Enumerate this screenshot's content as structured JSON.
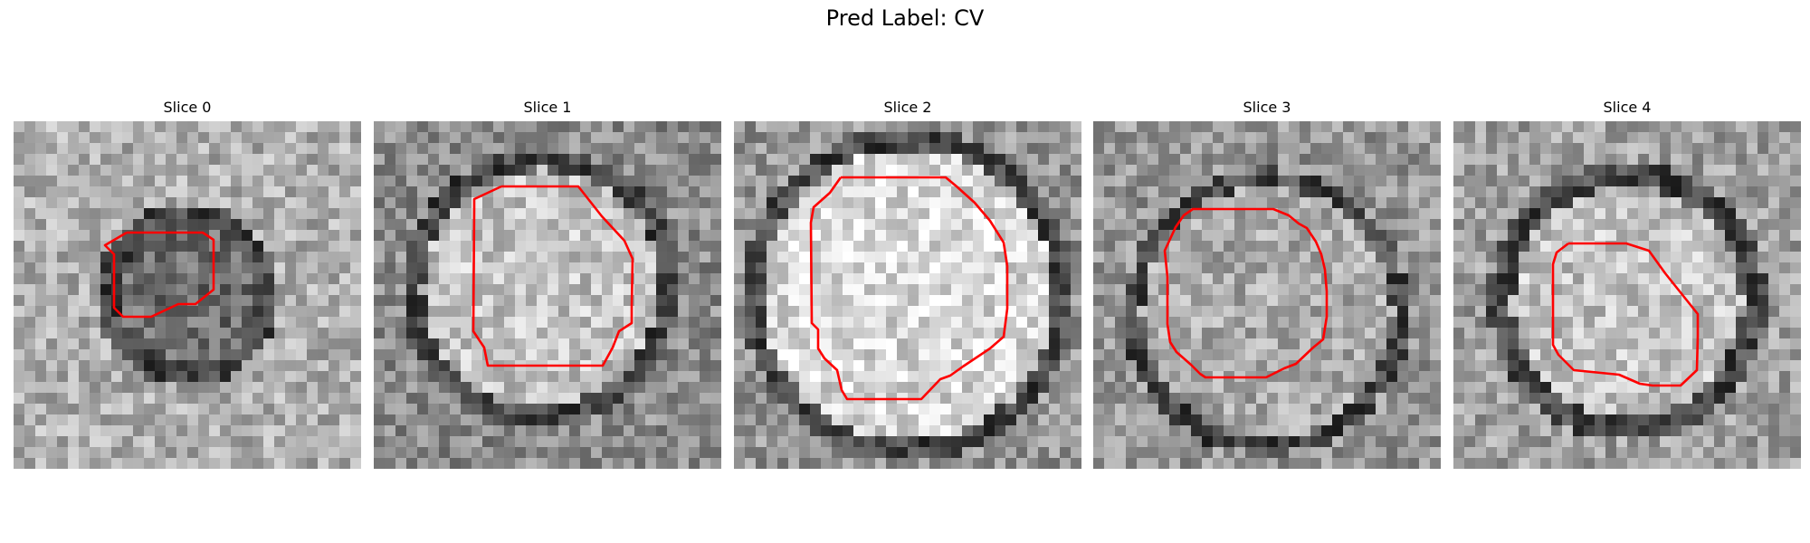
{
  "figure": {
    "title": "Pred Label: CV",
    "colormap": "gray",
    "contour_color": "#ff0000"
  },
  "slices": [
    {
      "title": "Slice 0",
      "rim_scale": 0.32,
      "interior": "dark"
    },
    {
      "title": "Slice 1",
      "rim_scale": 0.5,
      "interior": "bright"
    },
    {
      "title": "Slice 2",
      "rim_scale": 0.62,
      "interior": "bright"
    },
    {
      "title": "Slice 3",
      "rim_scale": 0.55,
      "interior": "medium"
    },
    {
      "title": "Slice 4",
      "rim_scale": 0.5,
      "interior": "bright"
    }
  ]
}
